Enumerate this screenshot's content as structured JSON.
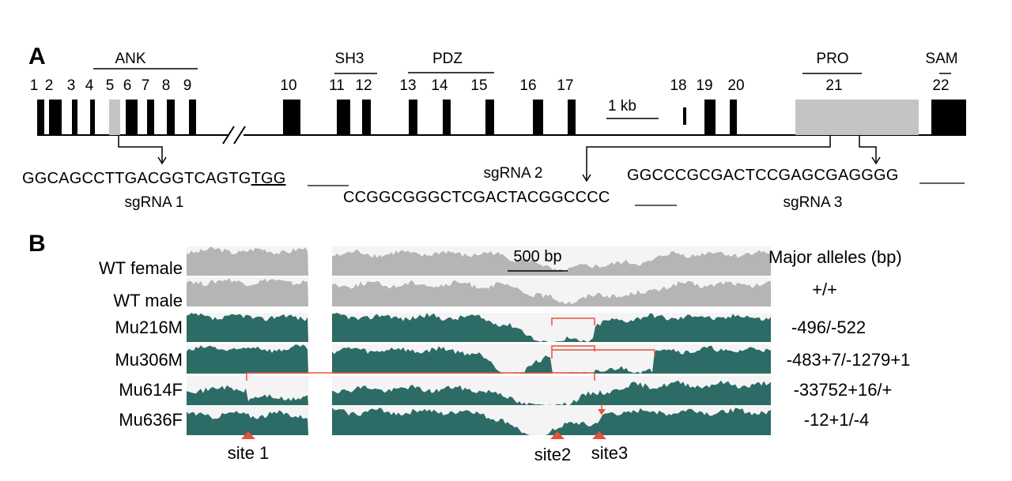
{
  "panel_a": {
    "label": "A",
    "domains": [
      {
        "key": "ank",
        "label": "ANK"
      },
      {
        "key": "sh3",
        "label": "SH3"
      },
      {
        "key": "pdz",
        "label": "PDZ"
      },
      {
        "key": "pro",
        "label": "PRO"
      },
      {
        "key": "sam",
        "label": "SAM"
      }
    ],
    "exon_numbers": [
      "1",
      "2",
      "3",
      "4",
      "5",
      "6",
      "7",
      "8",
      "9",
      "10",
      "11",
      "12",
      "13",
      "14",
      "15",
      "16",
      "17",
      "18",
      "19",
      "20",
      "21",
      "22"
    ],
    "scale_bar": "1 kb",
    "sgrnas": [
      {
        "label": "sgRNA 1",
        "seq_main": "GGCAGCCTTGACGGTCAGTG",
        "pam": "TGG"
      },
      {
        "label": "sgRNA 2",
        "seq_main": "CCGGCGGGCTCGACTACGGC",
        "pam": "CCC"
      },
      {
        "label": "sgRNA 3",
        "seq_main": "GGCCCGCGACTCCGAGCGAG",
        "pam": "GGG"
      }
    ]
  },
  "panel_b": {
    "label": "B",
    "scale_bar": "500 bp",
    "header": "Major alleles (bp)",
    "tracks": [
      {
        "name": "WT female",
        "allele": "",
        "color": "#b5b5b5"
      },
      {
        "name": "WT male",
        "allele": "+/+",
        "color": "#b5b5b5"
      },
      {
        "name": "Mu216M",
        "allele": "-496/-522",
        "color": "#2d6b66"
      },
      {
        "name": "Mu306M",
        "allele": "-483+7/-1279+1",
        "color": "#2d6b66"
      },
      {
        "name": "Mu614F",
        "allele": "-33752+16/+",
        "color": "#2d6b66"
      },
      {
        "name": "Mu636F",
        "allele": "-12+1/-4",
        "color": "#2d6b66"
      }
    ],
    "sites": [
      {
        "label": "site 1"
      },
      {
        "label": "site2"
      },
      {
        "label": "site3"
      }
    ]
  },
  "colors": {
    "exon": "#000000",
    "exon_gray": "#c4c4c4",
    "wt_track": "#b5b5b5",
    "mut_track": "#2d6b66",
    "track_bg": "#f4f4f4",
    "deletion": "#e8503a",
    "site_marker": "#e8503a"
  }
}
